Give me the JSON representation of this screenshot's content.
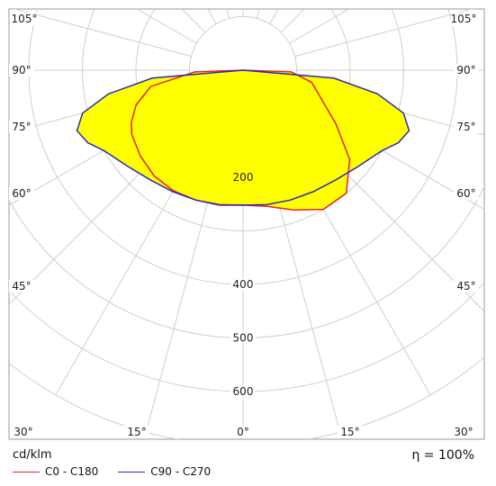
{
  "chart_data": {
    "type": "polar-photometric",
    "unit_label": "cd/klm",
    "efficiency_label": "η = 100%",
    "radial_ticks": [
      {
        "value": 200,
        "label": "200"
      },
      {
        "value": 400,
        "label": "400"
      },
      {
        "value": 500,
        "label": "500"
      },
      {
        "value": 600,
        "label": "600"
      }
    ],
    "radial_max": 700,
    "angle_labels": [
      "0°",
      "15°",
      "30°",
      "45°",
      "60°",
      "75°",
      "90°",
      "105°"
    ],
    "series": [
      {
        "name": "C0 - C180",
        "color": "#e8202a",
        "points": [
          [
            -90,
            0
          ],
          [
            -88,
            90
          ],
          [
            -80,
            175
          ],
          [
            -72,
            210
          ],
          [
            -65,
            230
          ],
          [
            -60,
            240
          ],
          [
            -50,
            250
          ],
          [
            -40,
            258
          ],
          [
            -30,
            260
          ],
          [
            -20,
            258
          ],
          [
            -10,
            256
          ],
          [
            0,
            252
          ],
          [
            10,
            258
          ],
          [
            20,
            278
          ],
          [
            30,
            300
          ],
          [
            40,
            300
          ],
          [
            50,
            260
          ],
          [
            60,
            200
          ],
          [
            70,
            155
          ],
          [
            80,
            130
          ],
          [
            88,
            90
          ],
          [
            90,
            0
          ]
        ]
      },
      {
        "name": "C90 - C270",
        "color": "#2a2ab8",
        "points": [
          [
            -90,
            0
          ],
          [
            -85,
            170
          ],
          [
            -80,
            255
          ],
          [
            -75,
            310
          ],
          [
            -70,
            330
          ],
          [
            -65,
            320
          ],
          [
            -60,
            300
          ],
          [
            -50,
            280
          ],
          [
            -40,
            268
          ],
          [
            -30,
            262
          ],
          [
            -20,
            258
          ],
          [
            -10,
            255
          ],
          [
            0,
            252
          ],
          [
            10,
            255
          ],
          [
            20,
            258
          ],
          [
            30,
            262
          ],
          [
            40,
            268
          ],
          [
            50,
            280
          ],
          [
            60,
            300
          ],
          [
            65,
            320
          ],
          [
            70,
            330
          ],
          [
            75,
            310
          ],
          [
            80,
            255
          ],
          [
            85,
            170
          ],
          [
            90,
            0
          ]
        ]
      }
    ],
    "fill_color": "#ffff00"
  }
}
